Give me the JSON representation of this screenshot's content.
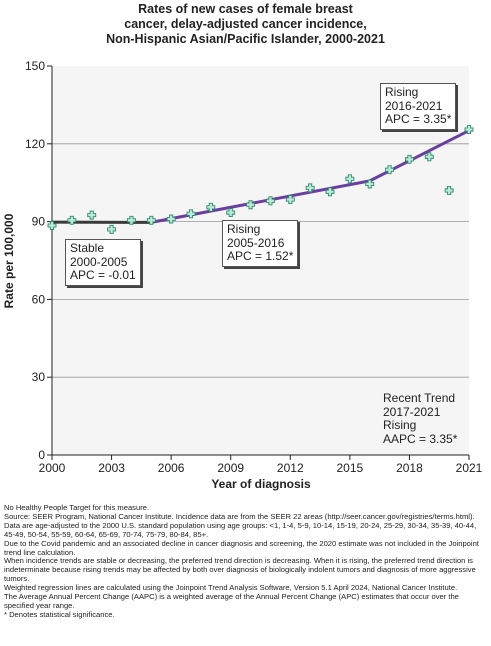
{
  "title_lines": [
    "Rates of new cases of female breast",
    "cancer, delay-adjusted cancer incidence,",
    "Non-Hispanic Asian/Pacific Islander,  2000-2021"
  ],
  "colors": {
    "segment1": "#3a3a3a",
    "segment2": "#6b3fa0",
    "segment3": "#6b3fa0",
    "marker": "#2e8b6e",
    "plot_bg": "#f5f5f5",
    "grid": "#999999"
  },
  "chart_data": {
    "type": "scatter",
    "xlabel": "Year of diagnosis",
    "ylabel": "Rate per 100,000",
    "xlim": [
      2000,
      2021
    ],
    "ylim": [
      0,
      150
    ],
    "x_ticks": [
      "2000",
      "2003",
      "2006",
      "2009",
      "2012",
      "2015",
      "2018",
      "2021"
    ],
    "y_ticks": [
      "0",
      "30",
      "60",
      "90",
      "120",
      "150"
    ],
    "grid": "horizontal",
    "observed": {
      "x": [
        2000,
        2001,
        2002,
        2003,
        2004,
        2005,
        2006,
        2007,
        2008,
        2009,
        2010,
        2011,
        2012,
        2013,
        2014,
        2015,
        2016,
        2017,
        2018,
        2019,
        2020,
        2021
      ],
      "y": [
        88.5,
        90.5,
        92.5,
        87.0,
        90.5,
        90.5,
        91.0,
        93.0,
        95.5,
        93.5,
        96.5,
        98.0,
        98.5,
        103.0,
        101.5,
        106.5,
        104.5,
        110.0,
        114.0,
        115.0,
        102.0,
        125.5
      ]
    },
    "trend_segments": [
      {
        "x": [
          2000,
          2005
        ],
        "y": [
          89.8,
          89.7
        ]
      },
      {
        "x": [
          2005,
          2016
        ],
        "y": [
          89.7,
          105.7
        ]
      },
      {
        "x": [
          2016,
          2021
        ],
        "y": [
          105.7,
          125.1
        ]
      }
    ],
    "annotations": [
      {
        "lines": [
          "Stable",
          "2000-2005",
          "APC = -0.01"
        ]
      },
      {
        "lines": [
          "Rising",
          "2005-2016",
          "APC =  1.52*"
        ]
      },
      {
        "lines": [
          "Rising",
          "2016-2021",
          "APC =  3.35*"
        ]
      },
      {
        "lines": [
          "Recent Trend",
          "2017-2021",
          "Rising",
          "AAPC =  3.35*"
        ]
      }
    ]
  },
  "notes": [
    "No Healthy People Target for this measure.",
    "Source: SEER Program, National Cancer Institute. Incidence data are from the SEER 22 areas (http://seer.cancer.gov/registries/terms.html).",
    "Data are age-adjusted to the 2000 U.S. standard population using age groups: <1, 1-4, 5-9, 10-14, 15-19, 20-24, 25-29, 30-34, 35-39, 40-44, 45-49, 50-54, 55-59, 60-64, 65-69, 70-74, 75-79, 80-84, 85+.",
    "Due to the Covid pandemic and an associated decline in cancer diagnosis and screening, the 2020 estimate was not included in the Joinpoint trend line calculation.",
    "When incidence trends are stable or decreasing, the preferred trend direction is decreasing. When it is rising, the preferred trend direction is indeterminate because rising trends may be affected by both over diagnosis of biologically indolent tumors and diagnosis of more aggressive tumors.",
    "Weighted regression lines are calculated using the Joinpoint Trend Analysis Software, Version 5.1 April 2024, National Cancer Institute.",
    "The Average Annual Percent Change (AAPC) is a weighted average of the Annual Percent Change (APC) estimates that occur over the specified year range.",
    "* Denotes statistical significance."
  ]
}
